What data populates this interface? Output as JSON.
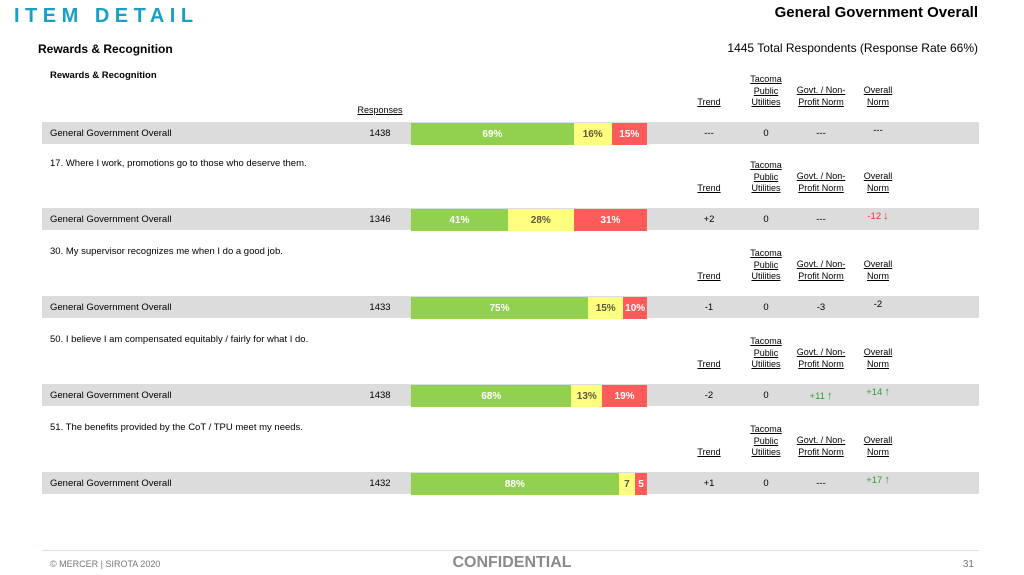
{
  "header": {
    "page_title": "ITEM DETAIL",
    "report_title": "General Government Overall",
    "section_title": "Rewards & Recognition",
    "respondents": "1445 Total Respondents (Response Rate  66%)"
  },
  "columns": {
    "responses": "Responses",
    "trend": "Trend",
    "tpu_line1": "Tacoma",
    "tpu_line2": "Public",
    "tpu_line3": "Utilities",
    "govt_line1": "Govt. / Non-",
    "govt_line2": "Profit Norm",
    "overall_line1": "Overall",
    "overall_line2": "Norm"
  },
  "items": [
    {
      "question": "Rewards & Recognition",
      "row_label": "General Government Overall",
      "n": "1438",
      "fav": 69,
      "neu": 16,
      "unf": 15,
      "fav_label": "69%",
      "neu_label": "16%",
      "unf_label": "15%",
      "trend": "---",
      "tpu": "0",
      "govt": "---",
      "overall": "---",
      "overall_dir": "",
      "govt_dir": ""
    },
    {
      "question": "17. Where I work, promotions go to those who deserve them.",
      "row_label": "General Government Overall",
      "n": "1346",
      "fav": 41,
      "neu": 28,
      "unf": 31,
      "fav_label": "41%",
      "neu_label": "28%",
      "unf_label": "31%",
      "trend": "+2",
      "tpu": "0",
      "govt": "---",
      "overall": "-12",
      "overall_dir": "down",
      "govt_dir": ""
    },
    {
      "question": "30. My supervisor recognizes me when I do a good job.",
      "row_label": "General Government Overall",
      "n": "1433",
      "fav": 75,
      "neu": 15,
      "unf": 10,
      "fav_label": "75%",
      "neu_label": "15%",
      "unf_label": "10%",
      "trend": "-1",
      "tpu": "0",
      "govt": "-3",
      "overall": "-2",
      "overall_dir": "",
      "govt_dir": ""
    },
    {
      "question": "50. I believe I am compensated equitably / fairly for what I do.",
      "row_label": "General Government Overall",
      "n": "1438",
      "fav": 68,
      "neu": 13,
      "unf": 19,
      "fav_label": "68%",
      "neu_label": "13%",
      "unf_label": "19%",
      "trend": "-2",
      "tpu": "0",
      "govt": "+11",
      "overall": "+14",
      "overall_dir": "up",
      "govt_dir": "up"
    },
    {
      "question": "51. The benefits provided by the CoT / TPU meet my needs.",
      "row_label": "General Government Overall",
      "n": "1432",
      "fav": 88,
      "neu": 7,
      "unf": 5,
      "fav_label": "88%",
      "neu_label": "7",
      "unf_label": "5",
      "trend": "+1",
      "tpu": "0",
      "govt": "---",
      "overall": "+17",
      "overall_dir": "up",
      "govt_dir": ""
    }
  ],
  "footer": {
    "copyright": "© MERCER | SIROTA 2020",
    "confidential": "CONFIDENTIAL",
    "page_number": "31"
  },
  "colors": {
    "favorable": "#92d050",
    "neutral": "#ffff7f",
    "unfavorable": "#ff5b5b",
    "title_accent": "#1aa0c4"
  }
}
